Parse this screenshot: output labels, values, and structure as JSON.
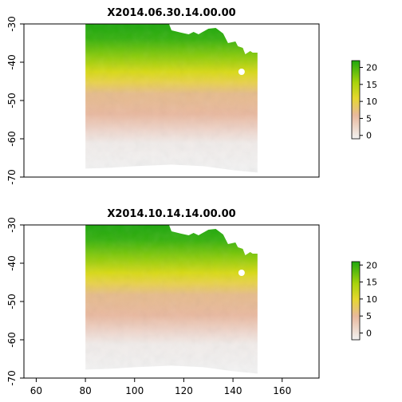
{
  "chart_data": [
    {
      "type": "heatmap",
      "title": "X2014.06.30.14.00.00",
      "xlabel": "",
      "ylabel": "",
      "xlim": [
        55,
        175
      ],
      "ylim": [
        -70,
        -30
      ],
      "x_ticks": [
        60,
        80,
        100,
        120,
        140,
        160
      ],
      "y_ticks": [
        -30,
        -40,
        -50,
        -60,
        -70
      ],
      "x_tick_labels_shown": false,
      "data_extent": {
        "x": [
          80,
          150
        ],
        "y": [
          -68,
          -30
        ]
      },
      "value_range": [
        -1,
        22
      ],
      "legend": {
        "position": "right",
        "ticks": [
          0,
          5,
          10,
          15,
          20
        ],
        "tick_labels": [
          "0",
          "5",
          "10",
          "15",
          "20"
        ]
      },
      "colors": {
        "low": "#f2f2f2",
        "mid_low": "#e8b99d",
        "mid": "#e6d72e",
        "mid_high": "#a8d30c",
        "high": "#1ea70e"
      },
      "grid": false
    },
    {
      "type": "heatmap",
      "title": "X2014.10.14.14.00.00",
      "xlabel": "",
      "ylabel": "",
      "xlim": [
        55,
        175
      ],
      "ylim": [
        -70,
        -30
      ],
      "x_ticks": [
        60,
        80,
        100,
        120,
        140,
        160
      ],
      "y_ticks": [
        -30,
        -40,
        -50,
        -60,
        -70
      ],
      "x_tick_labels_shown": true,
      "data_extent": {
        "x": [
          80,
          150
        ],
        "y": [
          -68,
          -30
        ]
      },
      "value_range": [
        -2,
        21
      ],
      "legend": {
        "position": "right",
        "ticks": [
          0,
          5,
          10,
          15,
          20
        ],
        "tick_labels": [
          "0",
          "5",
          "10",
          "15",
          "20"
        ]
      },
      "colors": {
        "low": "#f2f2f2",
        "mid_low": "#e8b99d",
        "mid": "#e6d72e",
        "mid_high": "#a8d30c",
        "high": "#1ea70e"
      },
      "grid": false
    }
  ]
}
